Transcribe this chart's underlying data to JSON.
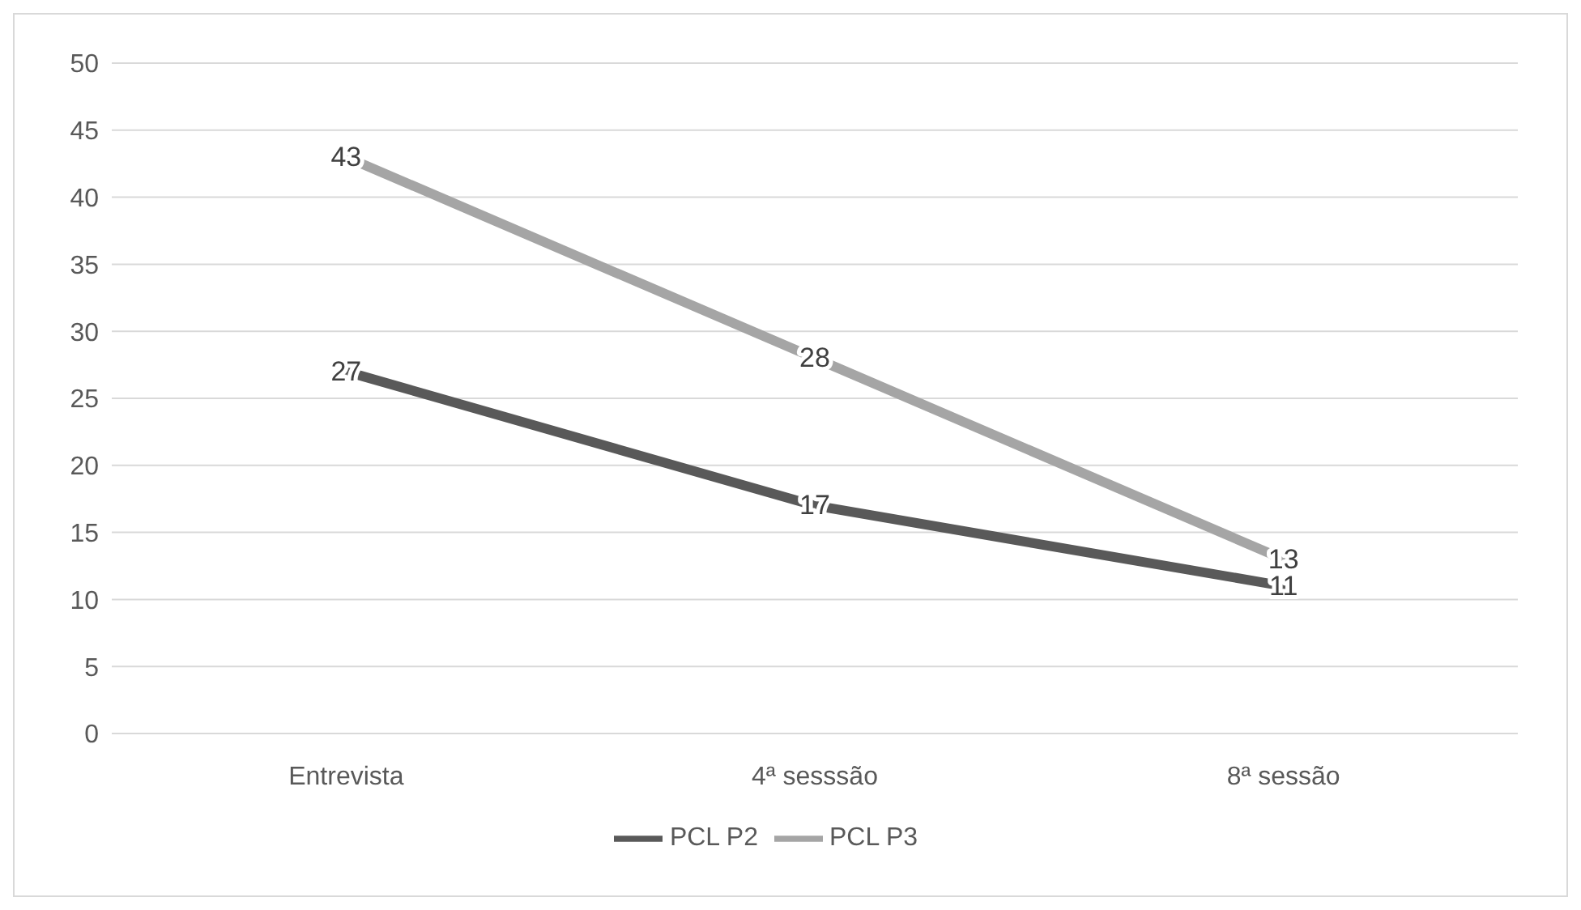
{
  "chart_data": {
    "type": "line",
    "categories": [
      "Entrevista",
      "4ª sesssão",
      "8ª sessão"
    ],
    "series": [
      {
        "name": "PCL P2",
        "color": "#595959",
        "values": [
          27,
          17,
          11
        ]
      },
      {
        "name": "PCL P3",
        "color": "#a5a5a5",
        "values": [
          43,
          28,
          13
        ]
      }
    ],
    "ylim": [
      0,
      50
    ],
    "yticks": [
      0,
      5,
      10,
      15,
      20,
      25,
      30,
      35,
      40,
      45,
      50
    ],
    "grid": "y",
    "legend": "bottom",
    "data_labels": true,
    "marker": "none",
    "line_style": "solid"
  }
}
